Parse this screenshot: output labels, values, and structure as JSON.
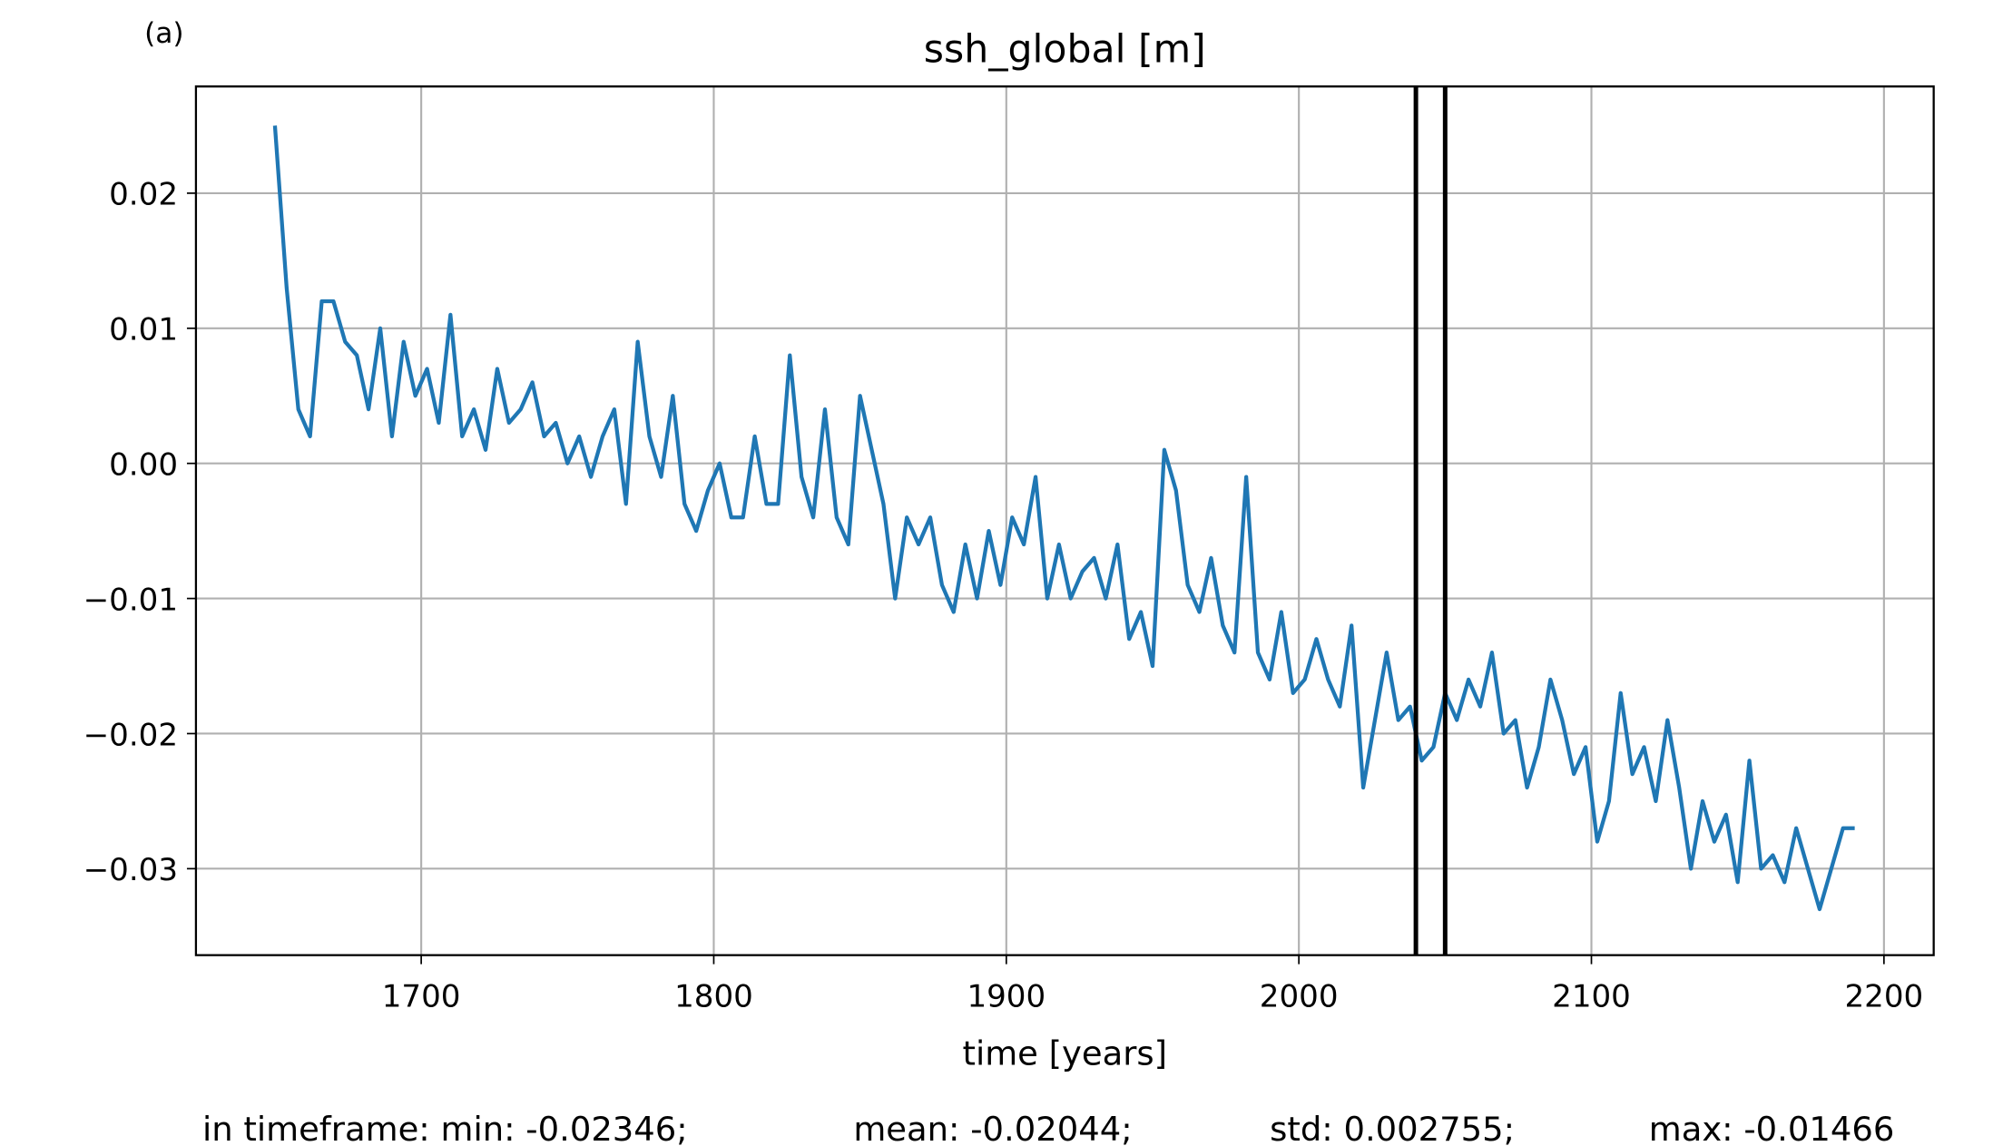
{
  "chart_data": {
    "type": "line",
    "panel_label": "(a)",
    "title": "ssh_global [m]",
    "xlabel": "time [years]",
    "stats": [
      "in timeframe: min: -0.02346;",
      "mean: -0.02044;",
      "std: 0.002755;",
      "max: -0.01466"
    ],
    "color": "#1f77b4",
    "vlines": [
      2040,
      2050
    ],
    "vline_color": "#000000",
    "grid": true,
    "xlim": [
      1623,
      2217
    ],
    "ylim": [
      -0.0364,
      0.0279
    ],
    "xticks": [
      1700,
      1800,
      1900,
      2000,
      2100,
      2200
    ],
    "yticks": [
      {
        "value": -0.03,
        "label": "−0.03"
      },
      {
        "value": -0.02,
        "label": "−0.02"
      },
      {
        "value": -0.01,
        "label": "−0.01"
      },
      {
        "value": 0,
        "label": "0.00"
      },
      0.01,
      0.02
    ],
    "x": [
      1650,
      1654,
      1658,
      1662,
      1666,
      1670,
      1674,
      1678,
      1682,
      1686,
      1690,
      1694,
      1698,
      1702,
      1706,
      1710,
      1714,
      1718,
      1722,
      1726,
      1730,
      1734,
      1738,
      1742,
      1746,
      1750,
      1754,
      1758,
      1762,
      1766,
      1770,
      1774,
      1778,
      1782,
      1786,
      1790,
      1794,
      1798,
      1802,
      1806,
      1810,
      1814,
      1818,
      1822,
      1826,
      1830,
      1834,
      1838,
      1842,
      1846,
      1850,
      1854,
      1858,
      1862,
      1866,
      1870,
      1874,
      1878,
      1882,
      1886,
      1890,
      1894,
      1898,
      1902,
      1906,
      1910,
      1914,
      1918,
      1922,
      1926,
      1930,
      1934,
      1938,
      1942,
      1946,
      1950,
      1954,
      1958,
      1962,
      1966,
      1970,
      1974,
      1978,
      1982,
      1986,
      1990,
      1994,
      1998,
      2002,
      2006,
      2010,
      2014,
      2018,
      2022,
      2026,
      2030,
      2034,
      2038,
      2042,
      2046,
      2050,
      2054,
      2058,
      2062,
      2066,
      2070,
      2074,
      2078,
      2082,
      2086,
      2090,
      2094,
      2098,
      2102,
      2106,
      2110,
      2114,
      2118,
      2122,
      2126,
      2130,
      2134,
      2138,
      2142,
      2146,
      2150,
      2154,
      2158,
      2162,
      2166,
      2170,
      2174,
      2178,
      2182,
      2186,
      2190
    ],
    "values": [
      0.025,
      0.013,
      0.004,
      0.002,
      0.012,
      0.012,
      0.009,
      0.008,
      0.004,
      0.01,
      0.002,
      0.009,
      0.005,
      0.007,
      0.003,
      0.011,
      0.002,
      0.004,
      0.001,
      0.007,
      0.003,
      0.004,
      0.006,
      0.002,
      0.003,
      0.0,
      0.002,
      -0.001,
      0.002,
      0.004,
      -0.003,
      0.009,
      0.002,
      -0.001,
      0.005,
      -0.003,
      -0.005,
      -0.002,
      0.0,
      -0.004,
      -0.004,
      0.002,
      -0.003,
      -0.003,
      0.008,
      -0.001,
      -0.004,
      0.004,
      -0.004,
      -0.006,
      0.005,
      0.001,
      -0.003,
      -0.01,
      -0.004,
      -0.006,
      -0.004,
      -0.009,
      -0.011,
      -0.006,
      -0.01,
      -0.005,
      -0.009,
      -0.004,
      -0.006,
      -0.001,
      -0.01,
      -0.006,
      -0.01,
      -0.008,
      -0.007,
      -0.01,
      -0.006,
      -0.013,
      -0.011,
      -0.015,
      0.001,
      -0.002,
      -0.009,
      -0.011,
      -0.007,
      -0.012,
      -0.014,
      -0.001,
      -0.014,
      -0.016,
      -0.011,
      -0.017,
      -0.016,
      -0.013,
      -0.016,
      -0.018,
      -0.012,
      -0.024,
      -0.019,
      -0.014,
      -0.019,
      -0.018,
      -0.022,
      -0.021,
      -0.017,
      -0.019,
      -0.016,
      -0.018,
      -0.014,
      -0.02,
      -0.019,
      -0.024,
      -0.021,
      -0.016,
      -0.019,
      -0.023,
      -0.021,
      -0.028,
      -0.025,
      -0.017,
      -0.023,
      -0.021,
      -0.025,
      -0.019,
      -0.024,
      -0.03,
      -0.025,
      -0.028,
      -0.026,
      -0.031,
      -0.022,
      -0.03,
      -0.029,
      -0.031,
      -0.027,
      -0.03,
      -0.033,
      -0.03,
      -0.027,
      -0.027
    ]
  }
}
